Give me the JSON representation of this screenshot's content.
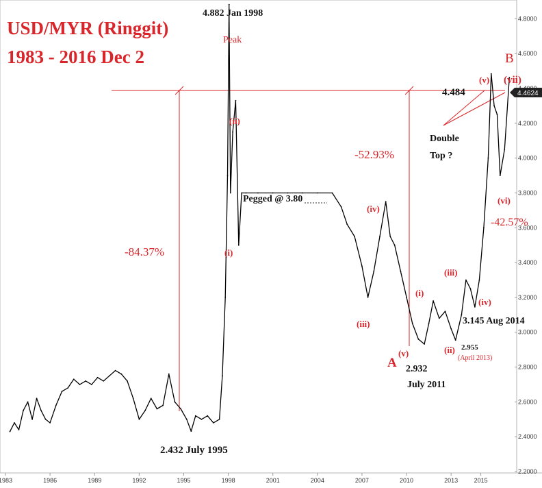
{
  "chart_data": {
    "type": "line",
    "title": "USD/MYR (Ringgit)",
    "subtitle": "1983 - 2016 Dec 2",
    "xlim": [
      1983,
      2017
    ],
    "ylim": [
      2.2,
      4.9
    ],
    "x_ticks": [
      "1983",
      "1986",
      "1989",
      "1992",
      "1995",
      "1998",
      "2001",
      "2004",
      "2007",
      "2010",
      "2013",
      "2015"
    ],
    "y_ticks": [
      "2.2000",
      "2.4000",
      "2.6000",
      "2.8000",
      "3.0000",
      "3.2000",
      "3.4000",
      "3.6000",
      "3.8000",
      "4.0000",
      "4.2000",
      "4.4000",
      "4.6000",
      "4.8000"
    ],
    "last_price_label": "4.4624",
    "last_price": 4.4624,
    "grid": false,
    "series": [
      {
        "x": [
          1983.3,
          1983.6,
          1983.9,
          1984.2,
          1984.5,
          1984.8,
          1985.1,
          1985.4,
          1985.7,
          1986.0,
          1986.4,
          1986.8,
          1987.2,
          1987.6,
          1988.0,
          1988.4,
          1988.8,
          1989.2,
          1989.6,
          1990.0,
          1990.4,
          1990.8,
          1991.2,
          1991.6,
          1992.0,
          1992.4,
          1992.8,
          1993.2,
          1993.6,
          1994.0,
          1994.4,
          1994.8,
          1995.2,
          1995.5,
          1995.8,
          1996.2,
          1996.6,
          1997.0,
          1997.4,
          1997.6,
          1997.8,
          1997.95,
          1998.05,
          1998.15,
          1998.3,
          1998.5,
          1998.7,
          1998.9,
          1999.2,
          2000.0,
          2001.0,
          2002.0,
          2003.0,
          2004.0,
          2005.0,
          2005.6,
          2006.0,
          2006.5,
          2007.0,
          2007.4,
          2007.8,
          2008.2,
          2008.6,
          2008.9,
          2009.2,
          2009.6,
          2010.0,
          2010.4,
          2010.8,
          2011.2,
          2011.5,
          2011.8,
          2012.2,
          2012.6,
          2013.0,
          2013.3,
          2013.7,
          2014.0,
          2014.3,
          2014.6,
          2014.9,
          2015.2,
          2015.5,
          2015.7,
          2015.9,
          2016.1,
          2016.3,
          2016.6,
          2016.92
        ],
        "y": [
          2.43,
          2.48,
          2.44,
          2.55,
          2.6,
          2.5,
          2.62,
          2.55,
          2.5,
          2.48,
          2.58,
          2.66,
          2.68,
          2.73,
          2.7,
          2.72,
          2.7,
          2.74,
          2.72,
          2.75,
          2.78,
          2.76,
          2.72,
          2.62,
          2.5,
          2.55,
          2.62,
          2.56,
          2.58,
          2.76,
          2.6,
          2.56,
          2.5,
          2.432,
          2.52,
          2.5,
          2.52,
          2.48,
          2.5,
          2.75,
          3.2,
          3.9,
          4.882,
          3.8,
          4.15,
          4.33,
          3.5,
          3.8,
          3.8,
          3.8,
          3.8,
          3.8,
          3.8,
          3.8,
          3.8,
          3.72,
          3.62,
          3.55,
          3.38,
          3.2,
          3.35,
          3.55,
          3.75,
          3.55,
          3.5,
          3.35,
          3.2,
          3.05,
          2.96,
          2.932,
          3.05,
          3.18,
          3.08,
          3.12,
          3.02,
          2.955,
          3.1,
          3.3,
          3.25,
          3.145,
          3.3,
          3.6,
          4.0,
          4.484,
          4.3,
          4.25,
          3.9,
          4.05,
          4.4624
        ]
      }
    ],
    "annotations": {
      "peak_value": "4.882 Jan 1998",
      "peak_word": "Peak",
      "wave_ii_upper": "(ii)",
      "wave_i_upper": "(i)",
      "pegged": "Pegged @ 3.80",
      "pct_left": "-84.37%",
      "low_1995": "2.432 July 1995",
      "wave_iv_mid": "(iv)",
      "wave_iii_mid": "(iii)",
      "pct_mid": "-52.93%",
      "resistance": "4.484",
      "label_A": "A",
      "wave_v_low": "(v)",
      "low_2011_value": "2.932",
      "low_2011_date": "July 2011",
      "wave_i_right": "(i)",
      "wave_iii_right": "(iii)",
      "wave_ii_right": "(ii)",
      "low_2013_value": "2.955",
      "low_2013_date": "(April 2013)",
      "wave_iv_right": "(iv)",
      "low_2014": "3.145 Aug 2014",
      "label_B": "B",
      "wave_v_top": "(v)",
      "wave_vii_top": "(vii)",
      "double_top": "Double",
      "double_top_2": "Top ?",
      "wave_vi_right": "(vi)",
      "pct_right": "-42.57%"
    },
    "colors": {
      "line": "#000000",
      "annotation": "#d9262b",
      "last_price_box": "#222222"
    }
  }
}
